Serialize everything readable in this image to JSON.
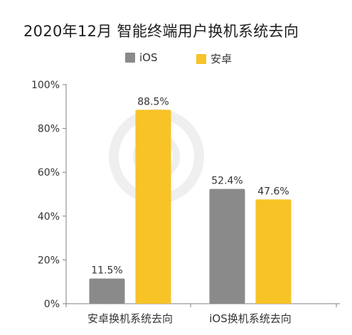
{
  "colors": {
    "ios": "#8a8a8a",
    "android": "#f7c326",
    "axis": "#808080",
    "text": "#333333",
    "background": "#ffffff"
  },
  "chart_data": {
    "type": "bar",
    "title": "2020年12月 智能终端用户换机系统去向",
    "categories": [
      "安卓换机系统去向",
      "iOS换机系统去向"
    ],
    "series": [
      {
        "name": "iOS",
        "values": [
          11.5,
          52.4
        ],
        "labels": [
          "11.5%",
          "52.4%"
        ]
      },
      {
        "name": "安卓",
        "values": [
          88.5,
          47.6
        ],
        "labels": [
          "88.5%",
          "47.6%"
        ]
      }
    ],
    "ylim": [
      0,
      100
    ],
    "yticks": [
      "0%",
      "20%",
      "40%",
      "60%",
      "80%",
      "100%"
    ],
    "grid": false,
    "legend_position": "top-center"
  }
}
